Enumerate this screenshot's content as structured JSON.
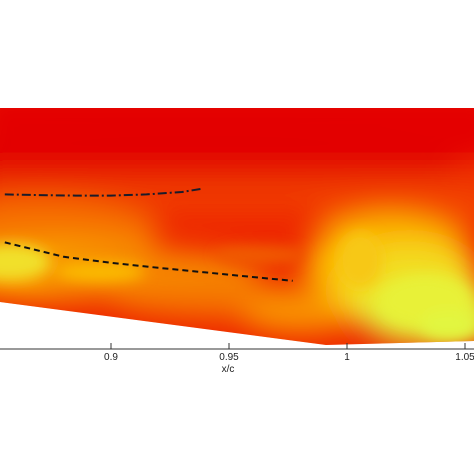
{
  "chart_data": {
    "type": "heatmap",
    "title": "",
    "xlabel": "x/c",
    "ylabel": "",
    "xlim": [
      0.855,
      1.0
    ],
    "x_ticks": [
      {
        "value": 0.9,
        "label": "0.9"
      },
      {
        "value": 0.95,
        "label": "0.95"
      },
      {
        "value": 1.0,
        "label": "1"
      },
      {
        "value": 1.05,
        "label": "1.05"
      }
    ],
    "colormap": [
      "#e80000",
      "#f24000",
      "#f77800",
      "#fbae00",
      "#f4e21c",
      "#e2f53a"
    ],
    "series": [
      {
        "style": "dash-dot",
        "color": "#1b1b2a",
        "x": [
          0.855,
          0.87,
          0.885,
          0.9,
          0.915,
          0.93,
          0.939
        ],
        "y_frac": [
          0.36,
          0.363,
          0.365,
          0.365,
          0.36,
          0.35,
          0.336
        ]
      },
      {
        "style": "dashed",
        "color": "#111111",
        "x": [
          0.855,
          0.88,
          0.9,
          0.92,
          0.94,
          0.96,
          0.977
        ],
        "y_frac": [
          0.56,
          0.62,
          0.645,
          0.666,
          0.685,
          0.704,
          0.72
        ]
      }
    ]
  }
}
